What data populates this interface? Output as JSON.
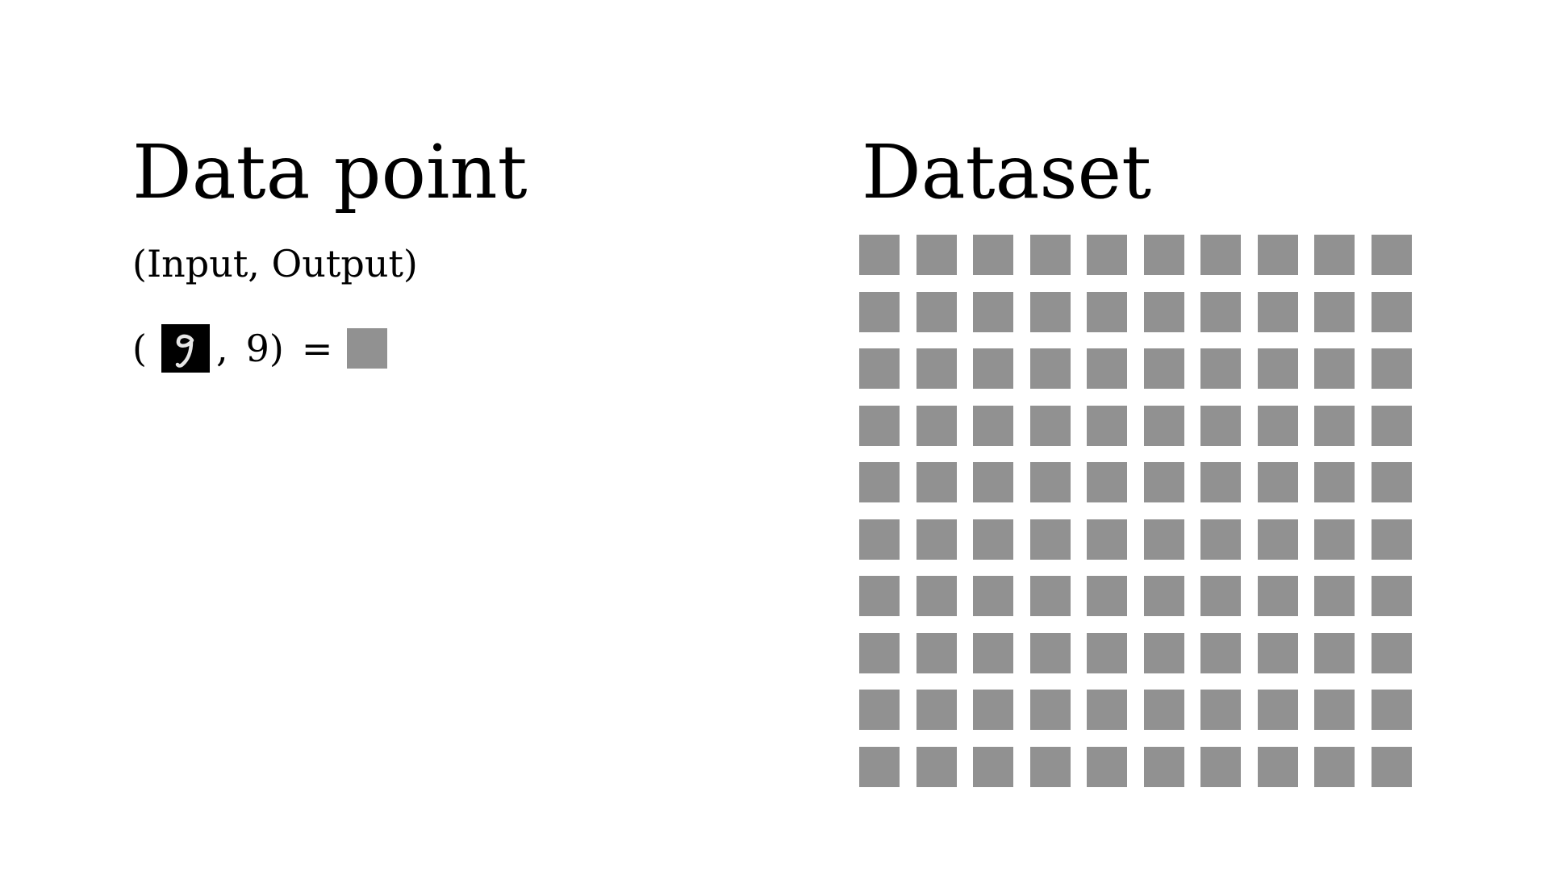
{
  "left_panel": {
    "title": "Data point",
    "subtitle": "(Input, Output)",
    "equation": {
      "open_paren": "(",
      "input_icon": "handwritten-digit-nine-icon",
      "comma": ",",
      "label": "9",
      "close_paren": ")",
      "equals": "="
    }
  },
  "right_panel": {
    "title": "Dataset",
    "grid": {
      "rows": 10,
      "columns": 10
    }
  },
  "colors": {
    "block": "#919191",
    "digit_background": "#000000",
    "digit_stroke": "#e6e6e6"
  }
}
